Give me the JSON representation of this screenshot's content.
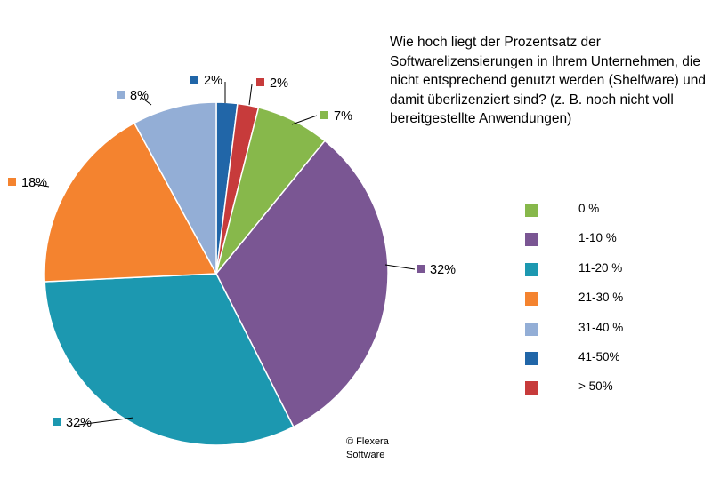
{
  "chart_data": {
    "type": "pie",
    "title": "Wie hoch liegt der Prozentsatz der Softwarelizensierungen in Ihrem Unternehmen, die nicht entsprechend genutzt werden (Shelfware) und damit überlizenziert sind?  (z. B. noch nicht voll bereitgestellte Anwendungen)",
    "slices": [
      {
        "category": "41-50%",
        "value": 2,
        "label": "2%",
        "color": "#2166A8"
      },
      {
        "category": "> 50%",
        "value": 2,
        "label": "2%",
        "color": "#C73B3B"
      },
      {
        "category": "0 %",
        "value": 7,
        "label": "7%",
        "color": "#87B84B"
      },
      {
        "category": "1-10 %",
        "value": 32,
        "label": "32%",
        "color": "#7A5693"
      },
      {
        "category": "11-20 %",
        "value": 32,
        "label": "32%",
        "color": "#1C98B0"
      },
      {
        "category": "21-30 %",
        "value": 18,
        "label": "18%",
        "color": "#F4832F"
      },
      {
        "category": "31-40 %",
        "value": 8,
        "label": "8%",
        "color": "#93AED6"
      }
    ],
    "legend": {
      "placement": "right",
      "entries": [
        {
          "label": "0 %",
          "color": "#87B84B"
        },
        {
          "label": "1-10 %",
          "color": "#7A5693"
        },
        {
          "label": "11-20 %",
          "color": "#1C98B0"
        },
        {
          "label": "21-30 %",
          "color": "#F4832F"
        },
        {
          "label": "31-40 %",
          "color": "#93AED6"
        },
        {
          "label": "41-50%",
          "color": "#2166A8"
        },
        {
          "label": "> 50%",
          "color": "#C73B3B"
        }
      ]
    },
    "start_angle": "12 o'clock",
    "direction": "clockwise"
  },
  "copyright": "© Flexera Software"
}
